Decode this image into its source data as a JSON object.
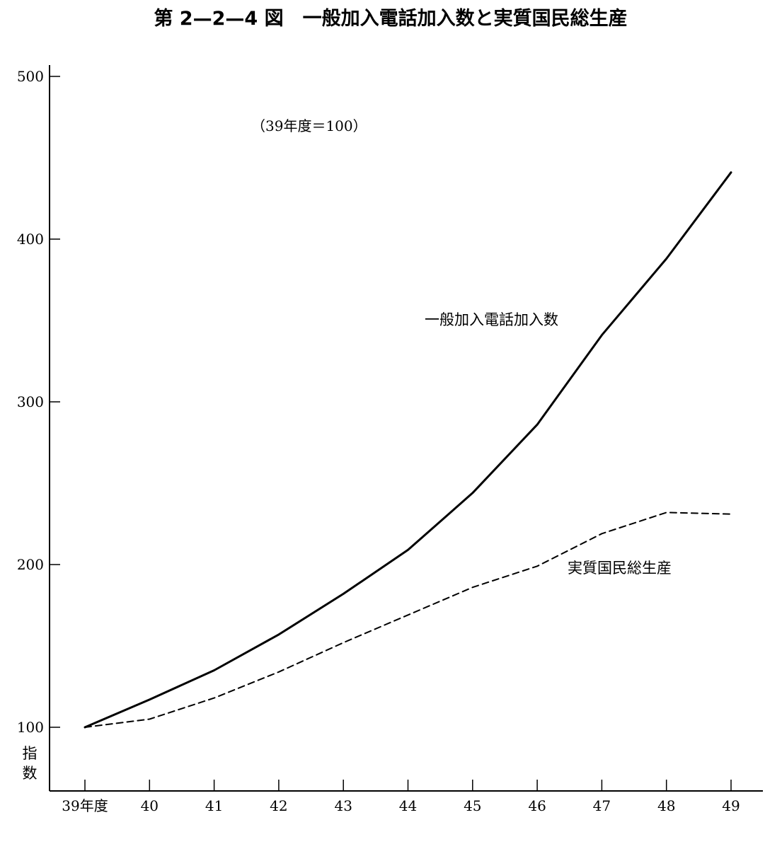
{
  "chart_data": {
    "type": "line",
    "title": "第 2—2—4 図　一般加入電話加入数と実質国民総生産",
    "note": "（39年度＝100）",
    "ylabel": "指数",
    "xlabel": "",
    "categories": [
      "39年度",
      "40",
      "41",
      "42",
      "43",
      "44",
      "45",
      "46",
      "47",
      "48",
      "49"
    ],
    "yticks": [
      "100",
      "200",
      "300",
      "400",
      "500"
    ],
    "ylim": [
      60,
      500
    ],
    "series": [
      {
        "name": "一般加入電話加入数",
        "style": "solid",
        "values": [
          100,
          117,
          135,
          157,
          182,
          209,
          244,
          286,
          341,
          388,
          441
        ]
      },
      {
        "name": "実質国民総生産",
        "style": "dashed",
        "values": [
          100,
          105,
          118,
          134,
          152,
          169,
          186,
          199,
          219,
          232,
          231
        ]
      }
    ],
    "grid": false,
    "legend": "inline labels"
  }
}
